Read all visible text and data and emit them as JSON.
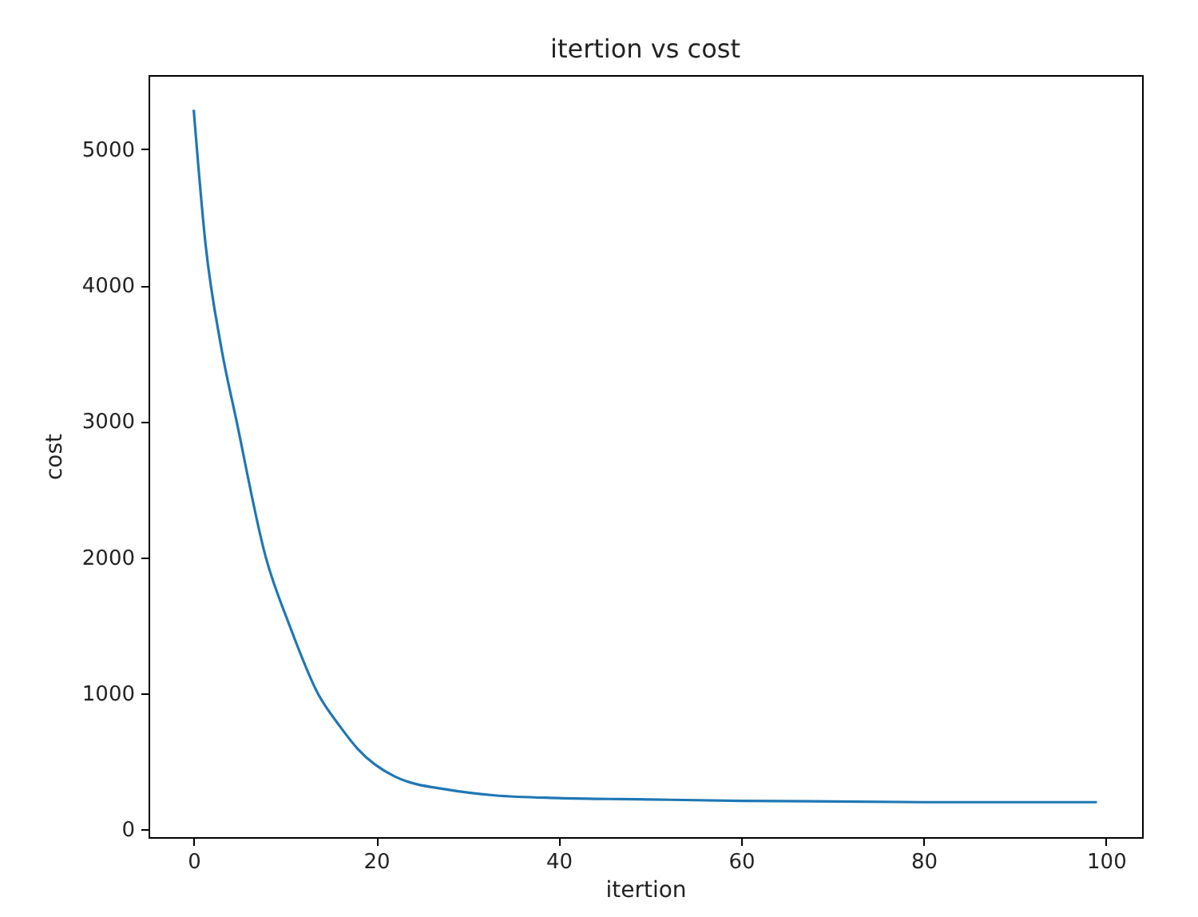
{
  "chart_data": {
    "type": "line",
    "title": "itertion vs cost",
    "xlabel": "itertion",
    "ylabel": "cost",
    "x": [
      0,
      1.3,
      3,
      4.7,
      7.9,
      10.5,
      13.6,
      16,
      18,
      22,
      28,
      33,
      40,
      50,
      60,
      80,
      99
    ],
    "series": [
      {
        "color": "#1f77b4",
        "values": [
          5290,
          4300,
          3550,
          3000,
          2000,
          1500,
          1000,
          760,
          590,
          390,
          290,
          250,
          230,
          220,
          210,
          200,
          200
        ]
      }
    ],
    "xlim": [
      -4.95,
      103.95
    ],
    "ylim": [
      -57,
      5545
    ],
    "xticks": [
      0,
      20,
      40,
      60,
      80,
      100
    ],
    "yticks": [
      0,
      1000,
      2000,
      3000,
      4000,
      5000
    ],
    "grid": false,
    "marker": "none",
    "line_style": "solid"
  }
}
